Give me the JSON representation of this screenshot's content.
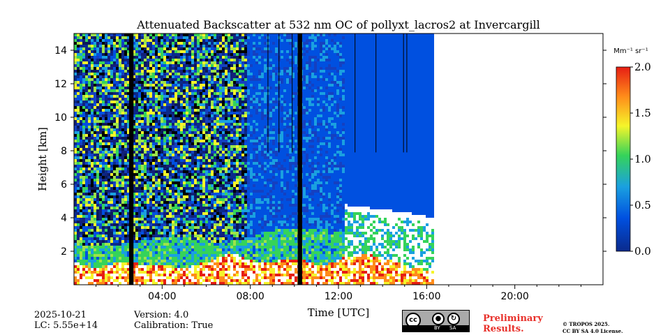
{
  "chart_data": {
    "type": "heatmap",
    "title": "Attenuated Backscatter at 532 nm OC of pollyxt_lacros2 at Invercargill",
    "xlabel": "Time [UTC]",
    "ylabel": "Height [km]",
    "xlim_hours": [
      0,
      24
    ],
    "ylim_km": [
      0,
      15
    ],
    "x_ticks": [
      {
        "value": 4,
        "label": "04:00"
      },
      {
        "value": 8,
        "label": "08:00"
      },
      {
        "value": 12,
        "label": "12:00"
      },
      {
        "value": 16,
        "label": "16:00"
      },
      {
        "value": 20,
        "label": "20:00"
      }
    ],
    "y_ticks": [
      {
        "value": 2,
        "label": "2"
      },
      {
        "value": 4,
        "label": "4"
      },
      {
        "value": 6,
        "label": "6"
      },
      {
        "value": 8,
        "label": "8"
      },
      {
        "value": 10,
        "label": "10"
      },
      {
        "value": 12,
        "label": "12"
      },
      {
        "value": 14,
        "label": "14"
      }
    ],
    "colorbar": {
      "range": [
        0.0,
        2.0
      ],
      "unit": "Mm⁻¹ sr⁻¹",
      "ticks": [
        {
          "value": 0.0,
          "label": "0.0"
        },
        {
          "value": 0.5,
          "label": "0.5"
        },
        {
          "value": 1.0,
          "label": "1.0"
        },
        {
          "value": 1.5,
          "label": "1.5"
        },
        {
          "value": 2.0,
          "label": "2.0"
        }
      ],
      "colormap": [
        "#0a2a8c",
        "#0050e0",
        "#1aa0e0",
        "#35d35a",
        "#f5f52a",
        "#ff8c1a",
        "#e61e14"
      ]
    },
    "data_coverage_hours": [
      0.0,
      16.3
    ],
    "gaps_hours": [
      [
        2.5,
        2.7
      ],
      [
        10.15,
        10.35
      ]
    ],
    "rain_lines_hours": [
      8.8,
      9.3,
      9.9,
      12.75,
      13.7,
      14.95,
      15.1
    ],
    "features": [
      {
        "name": "boundary_layer",
        "start_h": 0.0,
        "end_h": 16.3,
        "top_km": [
          2.5,
          2.4,
          2.6,
          3.0,
          2.8,
          2.5,
          3.0,
          3.5,
          3.5,
          3.2,
          2.8,
          2.8,
          2.9
        ]
      },
      {
        "name": "low_cloud",
        "start_h": 0.0,
        "end_h": 16.3,
        "top_km": [
          1.4,
          1.0,
          1.5,
          1.3,
          1.2,
          1.1,
          1.5,
          2.0,
          1.4,
          1.5,
          1.6,
          1.2,
          1.7,
          1.9,
          1.6,
          1.1,
          0.9
        ]
      },
      {
        "name": "cloud_top_layer",
        "start_h": 12.2,
        "end_h": 16.0,
        "height_km": [
          4.6,
          4.4,
          4.2,
          3.9
        ]
      }
    ]
  },
  "footer": {
    "date": "2025-10-21",
    "lc": "LC: 5.55e+14",
    "version": "Version: 4.0",
    "calibration": "Calibration: True",
    "preliminary_line1": "Preliminary",
    "preliminary_line2": "Results.",
    "copyright_line1": "© TROPOS 2025.",
    "copyright_line2": "CC BY SA 4.0 License.",
    "license_badge": {
      "cc": "cc",
      "by": "BY",
      "sa": "SA"
    }
  }
}
